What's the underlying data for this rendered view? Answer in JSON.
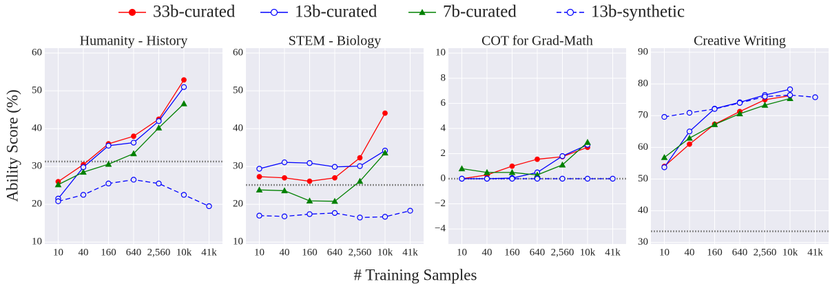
{
  "figure": {
    "xlabel": "# Training Samples",
    "ylabel": "Ability Score (%)"
  },
  "chart_data": [
    {
      "type": "line",
      "title": "Humanity - History",
      "categories": [
        "10",
        "40",
        "160",
        "640",
        "2,560",
        "10k",
        "41k"
      ],
      "ylim": [
        9.5,
        61.3
      ],
      "yticks": [
        10,
        20,
        30,
        40,
        50,
        60
      ],
      "grid": true,
      "hline": 31.3,
      "hline_color": "#888888",
      "series": [
        {
          "name": "33b-curated",
          "color": "#ff0000",
          "marker": "filled-circle",
          "linestyle": "solid",
          "values": [
            26,
            30.5,
            36,
            38,
            42.5,
            52.9,
            null
          ]
        },
        {
          "name": "13b-curated",
          "color": "#0000ff",
          "marker": "hollow-circle",
          "linestyle": "solid",
          "values": [
            21.5,
            29.8,
            35.5,
            36.3,
            42,
            51,
            null
          ]
        },
        {
          "name": "7b-curated",
          "color": "#008000",
          "marker": "triangle",
          "linestyle": "solid",
          "values": [
            25.2,
            28.5,
            30.6,
            33.4,
            40.2,
            46.6,
            null
          ]
        },
        {
          "name": "13b-synthetic",
          "color": "#0000ff",
          "marker": "hollow-circle",
          "linestyle": "dashed",
          "values": [
            20.8,
            22.5,
            25.5,
            26.5,
            25.5,
            22.5,
            19.5
          ]
        }
      ]
    },
    {
      "type": "line",
      "title": "STEM - Biology",
      "categories": [
        "10",
        "40",
        "160",
        "640",
        "2,560",
        "10k",
        "41k"
      ],
      "ylim": [
        9.5,
        61.3
      ],
      "yticks": [
        10,
        20,
        30,
        40,
        50,
        60
      ],
      "grid": true,
      "hline": 25.1,
      "hline_color": "#888888",
      "series": [
        {
          "name": "33b-curated",
          "color": "#ff0000",
          "marker": "filled-circle",
          "linestyle": "solid",
          "values": [
            27.3,
            27,
            26.1,
            27,
            32.3,
            44.1,
            null
          ]
        },
        {
          "name": "13b-curated",
          "color": "#0000ff",
          "marker": "hollow-circle",
          "linestyle": "solid",
          "values": [
            29.4,
            31.1,
            30.9,
            29.9,
            30.1,
            34.2,
            null
          ]
        },
        {
          "name": "7b-curated",
          "color": "#008000",
          "marker": "triangle",
          "linestyle": "solid",
          "values": [
            23.8,
            23.6,
            20.9,
            20.8,
            26.1,
            33.6,
            null
          ]
        },
        {
          "name": "13b-synthetic",
          "color": "#0000ff",
          "marker": "hollow-circle",
          "linestyle": "dashed",
          "values": [
            17,
            16.8,
            17.4,
            17.7,
            16.5,
            16.7,
            18.3
          ]
        }
      ]
    },
    {
      "type": "line",
      "title": "COT for Grad-Math",
      "categories": [
        "10",
        "40",
        "160",
        "640",
        "2,560",
        "10k",
        "41k"
      ],
      "ylim": [
        -5.2,
        10.4
      ],
      "yticks": [
        {
          "value": -4,
          "label": "−4"
        },
        {
          "value": -2,
          "label": "−2"
        },
        0,
        2,
        4,
        6,
        8,
        10
      ],
      "grid": true,
      "hline": 0,
      "hline_color": "#888888",
      "series": [
        {
          "name": "33b-curated",
          "color": "#ff0000",
          "marker": "filled-circle",
          "linestyle": "solid",
          "values": [
            0,
            0.3,
            1,
            1.55,
            1.75,
            2.5,
            null
          ]
        },
        {
          "name": "13b-curated",
          "color": "#0000ff",
          "marker": "hollow-circle",
          "linestyle": "solid",
          "values": [
            0,
            0,
            0.05,
            0.5,
            1.8,
            2.7,
            null
          ]
        },
        {
          "name": "7b-curated",
          "color": "#008000",
          "marker": "triangle",
          "linestyle": "solid",
          "values": [
            0.8,
            0.5,
            0.5,
            0.3,
            1.1,
            2.9,
            null
          ]
        },
        {
          "name": "13b-synthetic",
          "color": "#0000ff",
          "marker": "hollow-circle",
          "linestyle": "dashed",
          "values": [
            0,
            0,
            0,
            0,
            0,
            0,
            0
          ]
        }
      ]
    },
    {
      "type": "line",
      "title": "Creative Writing",
      "categories": [
        "10",
        "40",
        "160",
        "640",
        "2,560",
        "10k",
        "41k"
      ],
      "ylim": [
        29.5,
        91.3
      ],
      "yticks": [
        30,
        40,
        50,
        60,
        70,
        80,
        90
      ],
      "grid": true,
      "hline": 33.5,
      "hline_color": "#888888",
      "series": [
        {
          "name": "33b-curated",
          "color": "#ff0000",
          "marker": "filled-circle",
          "linestyle": "solid",
          "values": [
            54,
            61,
            67.3,
            71.3,
            75,
            76.3,
            null
          ]
        },
        {
          "name": "13b-curated",
          "color": "#0000ff",
          "marker": "hollow-circle",
          "linestyle": "solid",
          "values": [
            53.7,
            65,
            72.2,
            74.2,
            76.5,
            78.3,
            null
          ]
        },
        {
          "name": "7b-curated",
          "color": "#008000",
          "marker": "triangle",
          "linestyle": "solid",
          "values": [
            56.8,
            62.9,
            67.2,
            70.6,
            73.3,
            75.4,
            null
          ]
        },
        {
          "name": "13b-synthetic",
          "color": "#0000ff",
          "marker": "hollow-circle",
          "linestyle": "dashed",
          "values": [
            69.6,
            70.9,
            72.1,
            74,
            76,
            76.5,
            75.8
          ]
        }
      ]
    }
  ]
}
